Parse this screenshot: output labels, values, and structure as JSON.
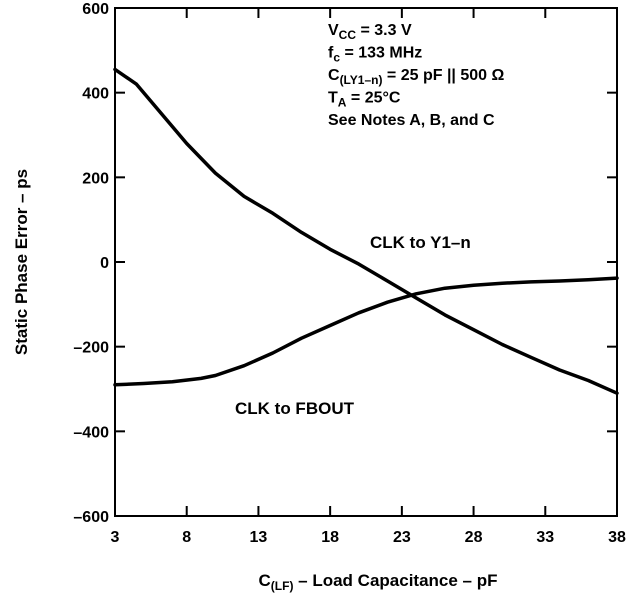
{
  "chart_data": {
    "type": "line",
    "xlabel": {
      "main": "C",
      "sub": "(LF)",
      "rest": " – Load Capacitance – pF"
    },
    "ylabel": "Static Phase Error – ps",
    "xlim": [
      3,
      38
    ],
    "ylim": [
      -600,
      600
    ],
    "xticks": [
      "3",
      "8",
      "13",
      "18",
      "23",
      "28",
      "33",
      "38"
    ],
    "yticks": [
      "600",
      "400",
      "200",
      "0",
      "–200",
      "–400",
      "–600"
    ],
    "grid": false,
    "series": [
      {
        "name": "CLK to Y1–n",
        "x": [
          3,
          4.5,
          6,
          8,
          10,
          12,
          14,
          16,
          18,
          20,
          22,
          24,
          26,
          28,
          30,
          32,
          34,
          36,
          38
        ],
        "y": [
          455,
          420,
          360,
          280,
          210,
          155,
          115,
          70,
          30,
          -5,
          -45,
          -85,
          -125,
          -160,
          -195,
          -225,
          -255,
          -280,
          -310
        ]
      },
      {
        "name": "CLK to FBOUT",
        "x": [
          3,
          5,
          7,
          9,
          10,
          12,
          14,
          16,
          18,
          20,
          22,
          24,
          26,
          28,
          30,
          32,
          34,
          36,
          38
        ],
        "y": [
          -290,
          -287,
          -283,
          -275,
          -268,
          -245,
          -215,
          -180,
          -150,
          -120,
          -95,
          -75,
          -62,
          -55,
          -50,
          -47,
          -45,
          -42,
          -38
        ]
      }
    ],
    "annotations": {
      "conditions": [
        {
          "main": "V",
          "sub": "CC",
          "rest": " = 3.3 V"
        },
        {
          "main": "f",
          "sub": "c",
          "rest": " = 133 MHz"
        },
        {
          "main": "C",
          "sub": "(LY1–n)",
          "rest": " = 25 pF || 500 Ω"
        },
        {
          "main": "T",
          "sub": "A",
          "rest": " = 25°C"
        },
        {
          "main": "See Notes A, B, and C",
          "sub": "",
          "rest": ""
        }
      ],
      "curve_labels": [
        {
          "text": "CLK to Y1–n"
        },
        {
          "text": "CLK to FBOUT"
        }
      ]
    }
  }
}
